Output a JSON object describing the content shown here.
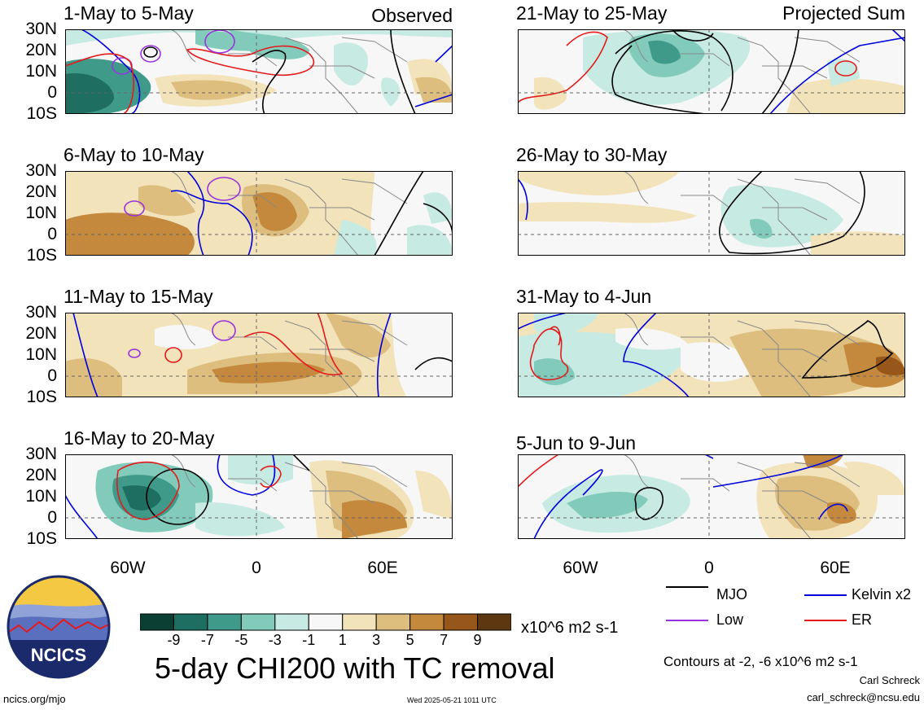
{
  "observed_label": "Observed",
  "projected_label": "Projected Sum",
  "panels": [
    {
      "title": "1-May to 5-May",
      "column": "left",
      "row": 0
    },
    {
      "title": "6-May to 10-May",
      "column": "left",
      "row": 1
    },
    {
      "title": "11-May to 15-May",
      "column": "left",
      "row": 2
    },
    {
      "title": "16-May to 20-May",
      "column": "left",
      "row": 3
    },
    {
      "title": "21-May to 25-May",
      "column": "right",
      "row": 0
    },
    {
      "title": "26-May to 30-May",
      "column": "right",
      "row": 1
    },
    {
      "title": "31-May to 4-Jun",
      "column": "right",
      "row": 2
    },
    {
      "title": "5-Jun to 9-Jun",
      "column": "right",
      "row": 3
    }
  ],
  "lat_labels": [
    "30N",
    "20N",
    "10N",
    "0",
    "10S"
  ],
  "lon_labels": [
    "60W",
    "0",
    "60E"
  ],
  "colorbar": {
    "ticks": [
      "-9",
      "-7",
      "-5",
      "-3",
      "-1",
      "1",
      "3",
      "5",
      "7",
      "9"
    ],
    "colors": [
      "#0b3f33",
      "#1e6e62",
      "#3f9a8a",
      "#82cbbb",
      "#c7ebe2",
      "#f7f7f7",
      "#f3e3bb",
      "#ddbe7f",
      "#c4893c",
      "#98571a",
      "#5c3710"
    ],
    "units": "x10^6 m2 s-1"
  },
  "legend": [
    {
      "label": "MJO",
      "color": "#000000"
    },
    {
      "label": "Kelvin x2",
      "color": "#0000dd"
    },
    {
      "label": "Low",
      "color": "#9933dd"
    },
    {
      "label": "ER",
      "color": "#e41a1c"
    }
  ],
  "main_title": "5-day CHI200 with TC removal",
  "contour_note": "Contours at -2, -6 x10^6 m2 s-1",
  "author": "Carl Schreck",
  "email": "carl_schreck@ncsu.edu",
  "site": "ncics.org/mjo",
  "timestamp": "Wed 2025-05-21 1011 UTC",
  "logo_text": "NCICS"
}
